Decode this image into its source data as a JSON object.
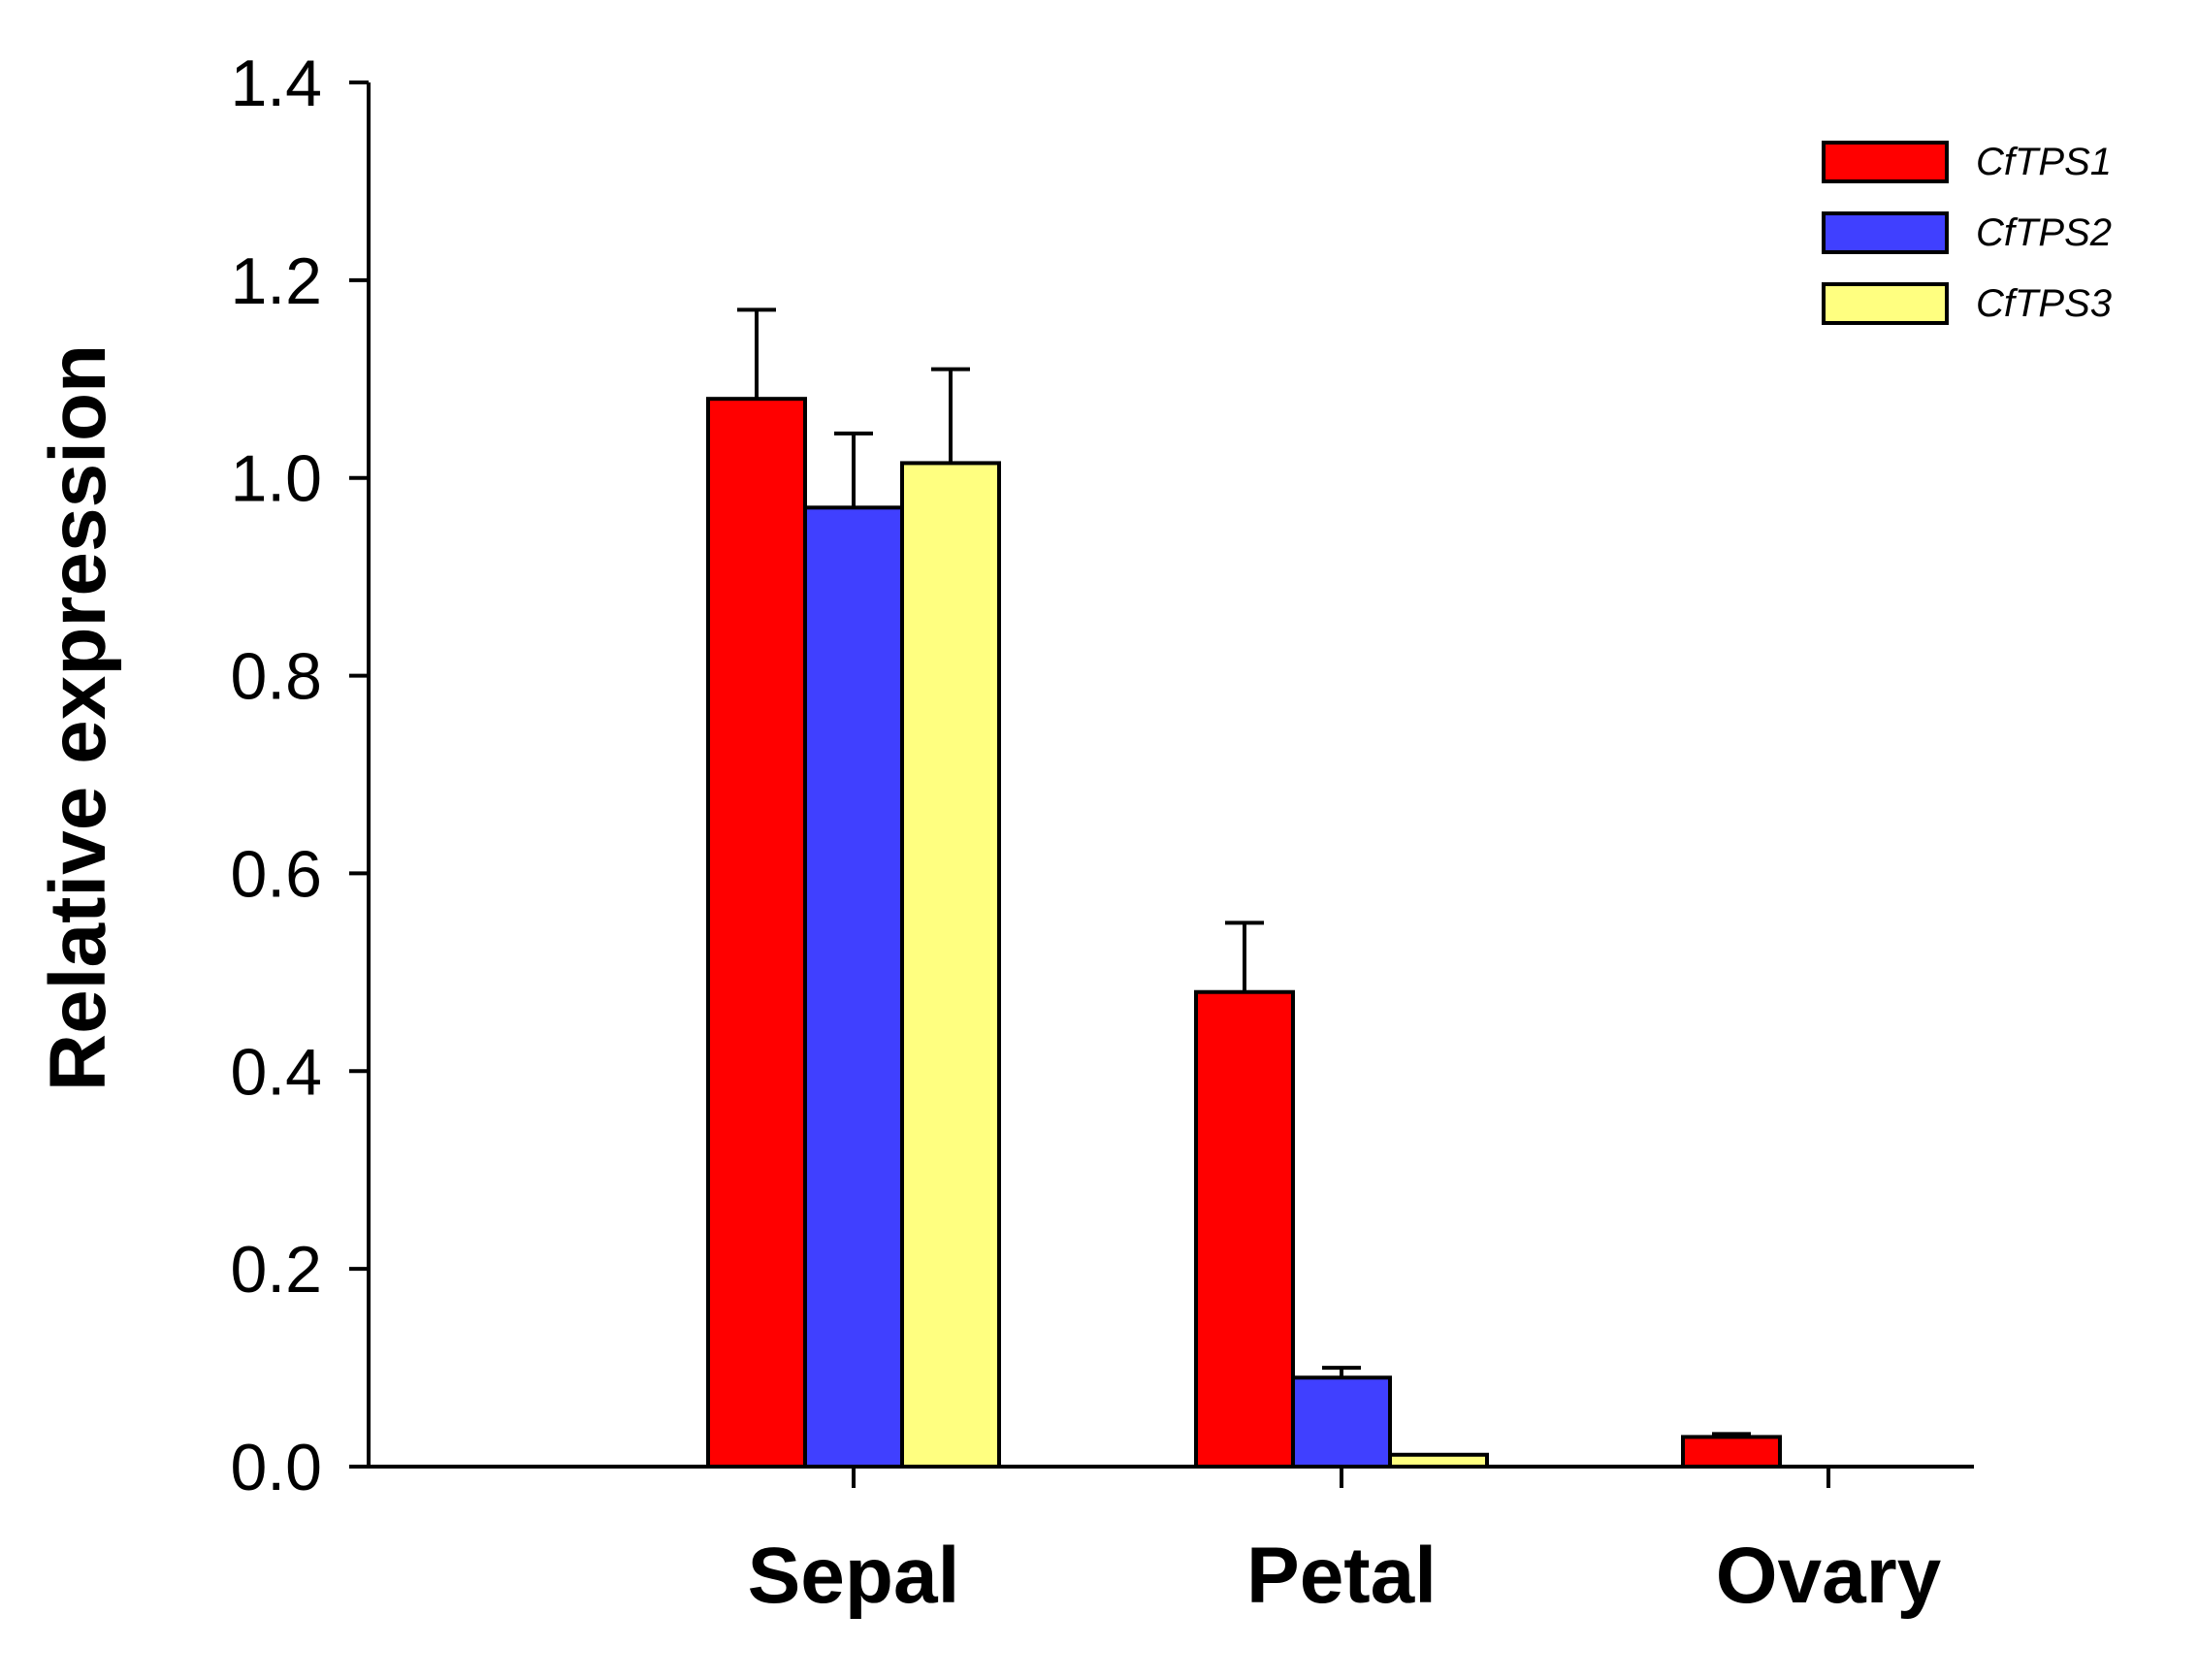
{
  "chart_data": {
    "type": "bar",
    "title": "",
    "xlabel": "",
    "ylabel": "Relative expression",
    "ylim": [
      0,
      1.4
    ],
    "yticks": [
      "0.0",
      "0.2",
      "0.4",
      "0.6",
      "0.8",
      "1.0",
      "1.2",
      "1.4"
    ],
    "ytick_values": [
      0,
      0.2,
      0.4,
      0.6,
      0.8,
      1.0,
      1.2,
      1.4
    ],
    "categories": [
      "Sepal",
      "Petal",
      "Ovary"
    ],
    "legend_position": "top-right",
    "series": [
      {
        "name": "CfTPS1",
        "color": "#ff0000",
        "values": [
          1.08,
          0.48,
          0.03
        ],
        "errors": [
          0.09,
          0.07,
          0.003
        ]
      },
      {
        "name": "CfTPS2",
        "color": "#4040ff",
        "values": [
          0.97,
          0.09,
          0.0
        ],
        "errors": [
          0.075,
          0.01,
          0.0
        ]
      },
      {
        "name": "CfTPS3",
        "color": "#ffff80",
        "values": [
          1.015,
          0.012,
          0.0
        ],
        "errors": [
          0.095,
          0.0,
          0.0
        ]
      }
    ]
  }
}
